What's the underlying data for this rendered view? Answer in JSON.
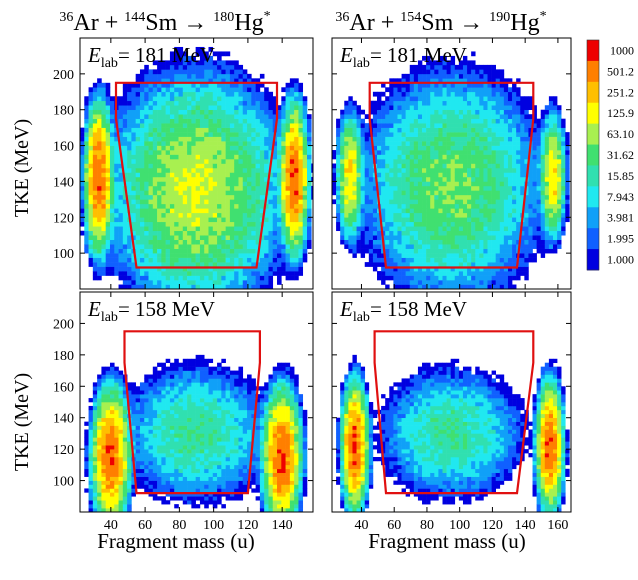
{
  "titles": [
    {
      "proj_mass": "36",
      "proj": "Ar",
      "targ_mass": "144",
      "targ": "Sm",
      "cn_mass": "180",
      "cn": "Hg",
      "star": "*"
    },
    {
      "proj_mass": "36",
      "proj": "Ar",
      "targ_mass": "154",
      "targ": "Sm",
      "cn_mass": "190",
      "cn": "Hg",
      "star": "*"
    }
  ],
  "ylabel": "TKE (MeV)",
  "xlabel": "Fragment mass (u)",
  "colorbar": {
    "labels": [
      "1000",
      "501.2",
      "251.2",
      "125.9",
      "63.10",
      "31.62",
      "15.85",
      "7.943",
      "3.981",
      "1.995",
      "1.000"
    ],
    "colors": [
      "#ee0000",
      "#ff7f00",
      "#ffbf00",
      "#ffff00",
      "#a8f050",
      "#40e070",
      "#30e0b0",
      "#20e8f0",
      "#10a0f8",
      "#1060ff",
      "#0000e0"
    ]
  },
  "chart_data": [
    {
      "type": "heatmap",
      "panel": "top-left",
      "reaction": "36Ar+144Sm→180Hg*",
      "annotation": "E_lab = 181 MeV",
      "e_lab_mev": 181,
      "xlabel": "",
      "ylabel": "TKE (MeV)",
      "xlim": [
        22,
        158
      ],
      "ylim": [
        80,
        220
      ],
      "yticks": [
        100,
        120,
        140,
        160,
        180,
        200
      ],
      "xticks": [
        40,
        60,
        80,
        100,
        120,
        140
      ],
      "gate_polygon": [
        [
          43,
          195
        ],
        [
          137,
          195
        ],
        [
          137,
          175
        ],
        [
          125,
          92
        ],
        [
          55,
          92
        ],
        [
          43,
          175
        ]
      ],
      "blobs": [
        {
          "center": [
            90,
            135
          ],
          "sigma": [
            20,
            25
          ],
          "peak_level": 125.9,
          "kind": "fission-like"
        },
        {
          "center": [
            33,
            142
          ],
          "sigma": [
            3,
            15
          ],
          "peak_level": 1000,
          "kind": "quasi-elastic"
        },
        {
          "center": [
            147,
            142
          ],
          "sigma": [
            3,
            15
          ],
          "peak_level": 1000,
          "kind": "quasi-elastic"
        }
      ]
    },
    {
      "type": "heatmap",
      "panel": "top-right",
      "reaction": "36Ar+154Sm→190Hg*",
      "annotation": "E_lab = 181 MeV",
      "e_lab_mev": 181,
      "xlabel": "",
      "ylabel": "",
      "xlim": [
        22,
        168
      ],
      "ylim": [
        80,
        220
      ],
      "yticks": [
        100,
        120,
        140,
        160,
        180,
        200
      ],
      "xticks": [
        40,
        60,
        80,
        100,
        120,
        140,
        160
      ],
      "gate_polygon": [
        [
          45,
          195
        ],
        [
          145,
          195
        ],
        [
          145,
          175
        ],
        [
          135,
          92
        ],
        [
          55,
          92
        ],
        [
          45,
          175
        ]
      ],
      "blobs": [
        {
          "center": [
            95,
            138
          ],
          "sigma": [
            22,
            25
          ],
          "peak_level": 63.1,
          "kind": "fission-like"
        },
        {
          "center": [
            33,
            143
          ],
          "sigma": [
            3,
            13
          ],
          "peak_level": 251.2,
          "kind": "quasi-elastic"
        },
        {
          "center": [
            157,
            143
          ],
          "sigma": [
            3,
            13
          ],
          "peak_level": 251.2,
          "kind": "quasi-elastic"
        }
      ]
    },
    {
      "type": "heatmap",
      "panel": "bottom-left",
      "reaction": "36Ar+144Sm→180Hg*",
      "annotation": "E_lab = 158 MeV",
      "e_lab_mev": 158,
      "xlabel": "Fragment mass (u)",
      "ylabel": "TKE (MeV)",
      "xlim": [
        22,
        158
      ],
      "ylim": [
        80,
        220
      ],
      "yticks": [
        100,
        120,
        140,
        160,
        180,
        200
      ],
      "xticks": [
        40,
        60,
        80,
        100,
        120,
        140
      ],
      "gate_polygon": [
        [
          48,
          195
        ],
        [
          127,
          195
        ],
        [
          127,
          175
        ],
        [
          120,
          92
        ],
        [
          55,
          92
        ],
        [
          48,
          175
        ]
      ],
      "blobs": [
        {
          "center": [
            90,
            130
          ],
          "sigma": [
            18,
            18
          ],
          "peak_level": 31.62,
          "kind": "fission-like"
        },
        {
          "center": [
            40,
            115
          ],
          "sigma": [
            4,
            16
          ],
          "peak_level": 1000,
          "kind": "quasi-elastic"
        },
        {
          "center": [
            140,
            115
          ],
          "sigma": [
            4,
            16
          ],
          "peak_level": 1000,
          "kind": "quasi-elastic"
        }
      ]
    },
    {
      "type": "heatmap",
      "panel": "bottom-right",
      "reaction": "36Ar+154Sm→190Hg*",
      "annotation": "E_lab = 158 MeV",
      "e_lab_mev": 158,
      "xlabel": "Fragment mass (u)",
      "ylabel": "",
      "xlim": [
        22,
        168
      ],
      "ylim": [
        80,
        220
      ],
      "yticks": [
        100,
        120,
        140,
        160,
        180,
        200
      ],
      "xticks": [
        40,
        60,
        80,
        100,
        120,
        140,
        160
      ],
      "gate_polygon": [
        [
          48,
          195
        ],
        [
          145,
          195
        ],
        [
          145,
          175
        ],
        [
          135,
          92
        ],
        [
          55,
          92
        ],
        [
          48,
          175
        ]
      ],
      "blobs": [
        {
          "center": [
            95,
            130
          ],
          "sigma": [
            18,
            17
          ],
          "peak_level": 31.62,
          "kind": "fission-like"
        },
        {
          "center": [
            36,
            122
          ],
          "sigma": [
            3,
            15
          ],
          "peak_level": 1000,
          "kind": "quasi-elastic"
        },
        {
          "center": [
            155,
            122
          ],
          "sigma": [
            3,
            15
          ],
          "peak_level": 1000,
          "kind": "quasi-elastic"
        }
      ]
    }
  ]
}
